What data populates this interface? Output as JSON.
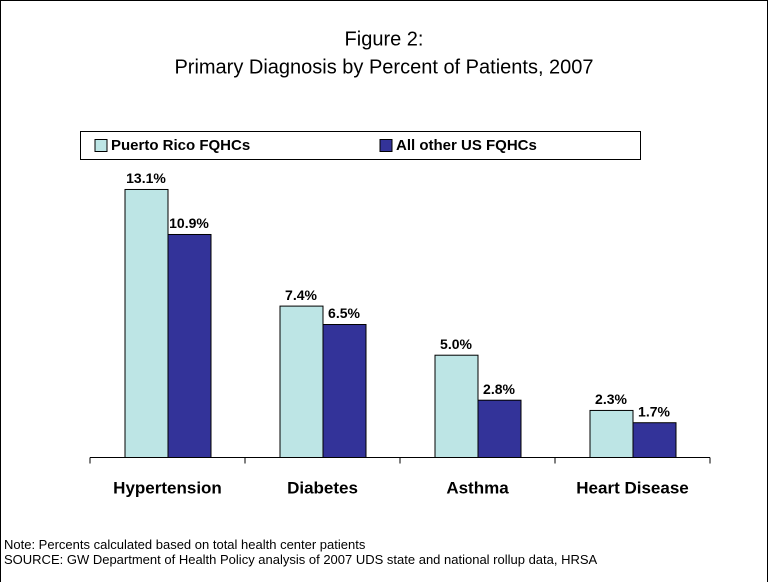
{
  "chart_data": {
    "type": "bar",
    "title": "Figure 2:",
    "subtitle": "Primary Diagnosis by Percent of Patients, 2007",
    "categories": [
      "Hypertension",
      "Diabetes",
      "Asthma",
      "Heart Disease"
    ],
    "series": [
      {
        "name": "Puerto Rico FQHCs",
        "color": "#bde5e5",
        "values": [
          13.1,
          7.4,
          5.0,
          2.3
        ],
        "value_labels": [
          "13.1%",
          "7.4%",
          "5.0%",
          "2.3%"
        ]
      },
      {
        "name": "All other US FQHCs",
        "color": "#333399",
        "values": [
          10.9,
          6.5,
          2.8,
          1.7
        ],
        "value_labels": [
          "10.9%",
          "6.5%",
          "2.8%",
          "1.7%"
        ]
      }
    ],
    "legend": "top",
    "notes": [
      "Note: Percents calculated based on total health center patients",
      "SOURCE: GW Department of Health Policy analysis of 2007 UDS state and national rollup data, HRSA"
    ]
  }
}
